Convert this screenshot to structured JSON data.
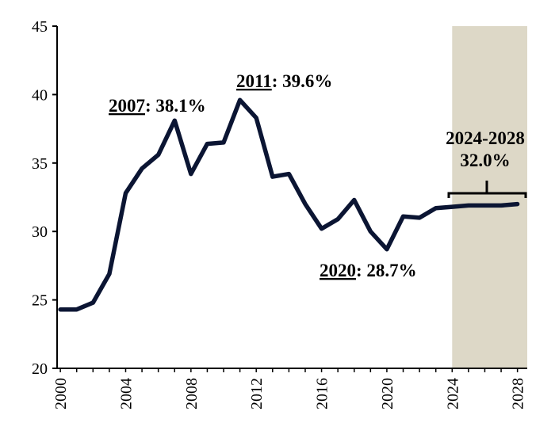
{
  "chart_data": {
    "type": "line",
    "title": "",
    "xlabel": "",
    "ylabel": "",
    "xlim": [
      1999.8,
      2028.6
    ],
    "ylim": [
      20,
      45
    ],
    "y_ticks": [
      "20",
      "25",
      "30",
      "35",
      "40",
      "45"
    ],
    "x_ticks": [
      "2000",
      "2004",
      "2008",
      "2012",
      "2016",
      "2020",
      "2024",
      "2028"
    ],
    "grid": false,
    "line_color": "#0b1533",
    "shade_color": "#ddd8c7",
    "forecast_region": {
      "x_start": 2024,
      "x_end": 2028.6
    },
    "series": [
      {
        "x": [
          2000,
          2001,
          2002,
          2003,
          2004,
          2005,
          2006,
          2007,
          2008,
          2009,
          2010,
          2011,
          2012,
          2013,
          2014,
          2015,
          2016,
          2017,
          2018,
          2019,
          2020,
          2021,
          2022,
          2023,
          2024,
          2025,
          2026,
          2027,
          2028
        ],
        "values": [
          24.3,
          24.3,
          24.8,
          26.9,
          32.8,
          34.6,
          35.6,
          38.1,
          34.2,
          36.4,
          36.5,
          39.6,
          38.3,
          34.0,
          34.2,
          32.0,
          30.2,
          30.9,
          32.3,
          30.0,
          28.7,
          31.1,
          31.0,
          31.7,
          31.8,
          31.9,
          31.9,
          31.9,
          32.0
        ]
      }
    ],
    "annotations": [
      {
        "id": "a2007",
        "year": "2007",
        "value": "38.1%"
      },
      {
        "id": "a2011",
        "year": "2011",
        "value": "39.6%"
      },
      {
        "id": "a2020",
        "year": "2020",
        "value": "28.7%"
      },
      {
        "id": "forecast",
        "line1": "2024-2028",
        "line2": "32.0%"
      }
    ]
  }
}
